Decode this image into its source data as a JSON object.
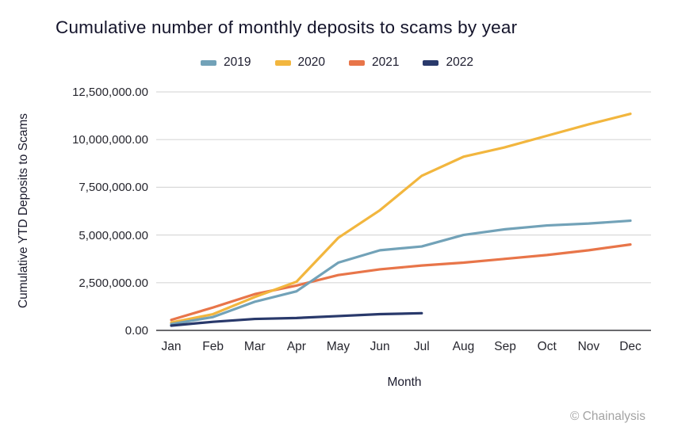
{
  "title": "Cumulative number of monthly deposits to scams by year",
  "footer": {
    "credit": "© Chainalysis"
  },
  "chart_data": {
    "type": "line",
    "title": "Cumulative number of monthly deposits to scams by year",
    "xlabel": "Month",
    "ylabel": "Cumulative YTD Deposits to Scams",
    "ylim": [
      0,
      12500000
    ],
    "grid": true,
    "legend_position": "top-center",
    "categories": [
      "Jan",
      "Feb",
      "Mar",
      "Apr",
      "May",
      "Jun",
      "Jul",
      "Aug",
      "Sep",
      "Oct",
      "Nov",
      "Dec"
    ],
    "yticks": [
      {
        "value": 12500000,
        "label": "12,500,000.00"
      },
      {
        "value": 10000000,
        "label": "10,000,000.00"
      },
      {
        "value": 7500000,
        "label": "7,500,000.00"
      },
      {
        "value": 5000000,
        "label": "5,000,000.00"
      },
      {
        "value": 2500000,
        "label": "2,500,000.00"
      },
      {
        "value": 0,
        "label": "0.00"
      }
    ],
    "series": [
      {
        "name": "2019",
        "color": "#72a2b8",
        "values": [
          330000,
          700000,
          1500000,
          2050000,
          3550000,
          4200000,
          4400000,
          5000000,
          5300000,
          5500000,
          5600000,
          5750000
        ]
      },
      {
        "name": "2020",
        "color": "#f2b63e",
        "values": [
          410000,
          850000,
          1750000,
          2550000,
          4850000,
          6300000,
          8100000,
          9100000,
          9600000,
          10200000,
          10800000,
          11350000
        ]
      },
      {
        "name": "2021",
        "color": "#e87549",
        "values": [
          550000,
          1200000,
          1900000,
          2350000,
          2900000,
          3200000,
          3400000,
          3550000,
          3750000,
          3950000,
          4200000,
          4500000
        ]
      },
      {
        "name": "2022",
        "color": "#29396b",
        "values": [
          250000,
          450000,
          600000,
          650000,
          750000,
          850000,
          900000
        ]
      }
    ]
  }
}
